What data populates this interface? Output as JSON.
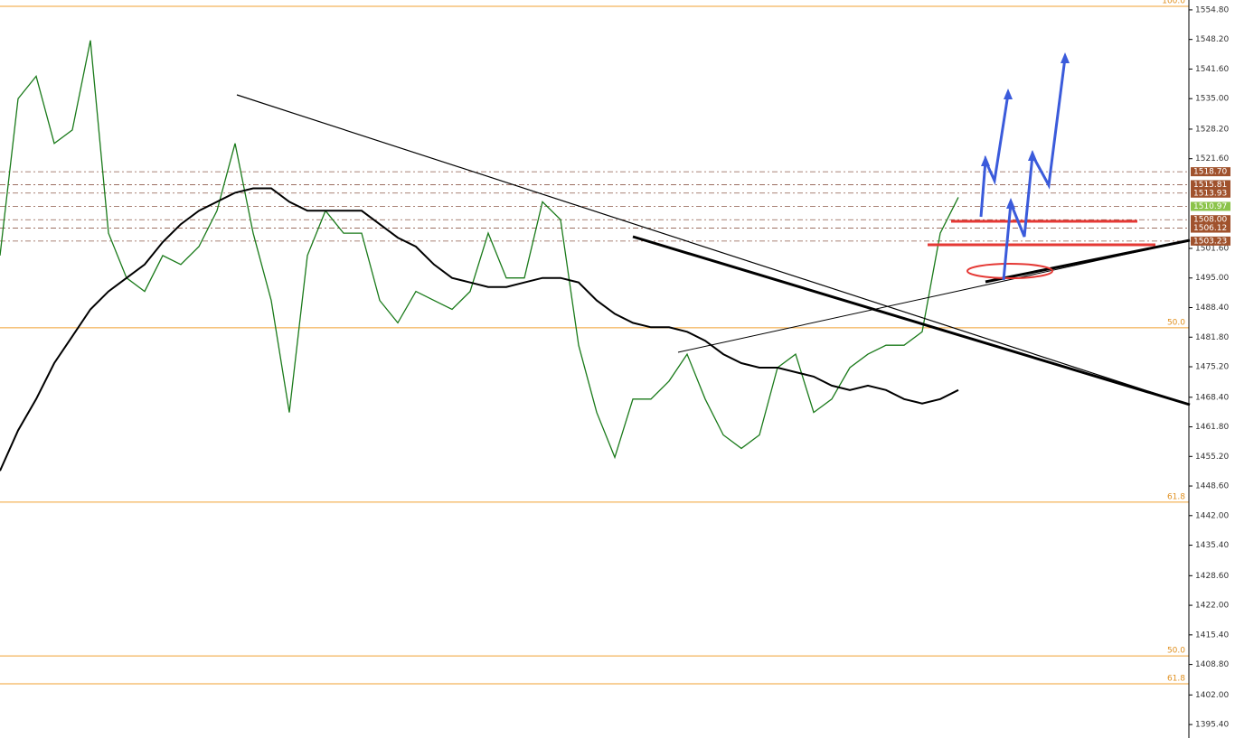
{
  "chart_data": {
    "type": "line",
    "series": [
      {
        "name": "Price",
        "color": "#1a7a1a",
        "values": [
          1500,
          1535,
          1540,
          1525,
          1528,
          1548,
          1505,
          1495,
          1492,
          1500,
          1498,
          1502,
          1510,
          1525,
          1505,
          1490,
          1465,
          1500,
          1510,
          1505,
          1505,
          1490,
          1485,
          1492,
          1490,
          1488,
          1492,
          1505,
          1495,
          1495,
          1512,
          1508,
          1480,
          1465,
          1455,
          1468,
          1468,
          1472,
          1478,
          1468,
          1460,
          1457,
          1460,
          1475,
          1478,
          1465,
          1468,
          1475,
          1478,
          1480,
          1480,
          1483,
          1505,
          1513
        ]
      },
      {
        "name": "MA",
        "color": "#000000",
        "values": [
          1452,
          1461,
          1468,
          1476,
          1482,
          1488,
          1492,
          1495,
          1498,
          1503,
          1507,
          1510,
          1512,
          1514,
          1515,
          1515,
          1512,
          1510,
          1510,
          1510,
          1510,
          1507,
          1504,
          1502,
          1498,
          1495,
          1494,
          1493,
          1493,
          1494,
          1495,
          1495,
          1494,
          1490,
          1487,
          1485,
          1484,
          1484,
          1483,
          1481,
          1478,
          1476,
          1475,
          1475,
          1474,
          1473,
          1471,
          1470,
          1471,
          1470,
          1468,
          1467,
          1468,
          1470
        ]
      }
    ],
    "ylim": [
      1392.4,
      1557.0
    ],
    "yticks": [
      {
        "value": 1554.8,
        "label": "1554.80"
      },
      {
        "value": 1548.2,
        "label": "1548.20"
      },
      {
        "value": 1541.6,
        "label": "1541.60"
      },
      {
        "value": 1535.0,
        "label": "1535.00"
      },
      {
        "value": 1528.2,
        "label": "1528.20"
      },
      {
        "value": 1521.6,
        "label": "1521.60"
      },
      {
        "value": 1501.6,
        "label": "1501.60"
      },
      {
        "value": 1495.0,
        "label": "1495.00"
      },
      {
        "value": 1488.4,
        "label": "1488.40"
      },
      {
        "value": 1481.8,
        "label": "1481.80"
      },
      {
        "value": 1475.2,
        "label": "1475.20"
      },
      {
        "value": 1468.4,
        "label": "1468.40"
      },
      {
        "value": 1461.8,
        "label": "1461.80"
      },
      {
        "value": 1455.2,
        "label": "1455.20"
      },
      {
        "value": 1448.6,
        "label": "1448.60"
      },
      {
        "value": 1442.0,
        "label": "1442.00"
      },
      {
        "value": 1435.4,
        "label": "1435.40"
      },
      {
        "value": 1428.6,
        "label": "1428.60"
      },
      {
        "value": 1422.0,
        "label": "1422.00"
      },
      {
        "value": 1415.4,
        "label": "1415.40"
      },
      {
        "value": 1408.8,
        "label": "1408.80"
      },
      {
        "value": 1402.0,
        "label": "1402.00"
      },
      {
        "value": 1395.4,
        "label": "1395.40"
      }
    ],
    "levels": [
      {
        "value": 1518.7,
        "label": "1518.70",
        "color": "#a0522d"
      },
      {
        "value": 1515.81,
        "label": "1515.81",
        "color": "#a0522d"
      },
      {
        "value": 1513.93,
        "label": "1513.93",
        "color": "#a0522d"
      },
      {
        "value": 1510.97,
        "label": "1510.97",
        "color": "#8bc34a"
      },
      {
        "value": 1508.0,
        "label": "1508.00",
        "color": "#a0522d"
      },
      {
        "value": 1506.12,
        "label": "1506.12",
        "color": "#a0522d"
      },
      {
        "value": 1503.23,
        "label": "1503.23",
        "color": "#a0522d"
      }
    ],
    "fib_levels": [
      {
        "value": 1555.6,
        "label": "100.0"
      },
      {
        "value": 1483.9,
        "label": "50.0"
      },
      {
        "value": 1445.0,
        "label": "61.8"
      },
      {
        "value": 1410.7,
        "label": "50.0"
      },
      {
        "value": 1404.5,
        "label": "61.8"
      }
    ]
  }
}
